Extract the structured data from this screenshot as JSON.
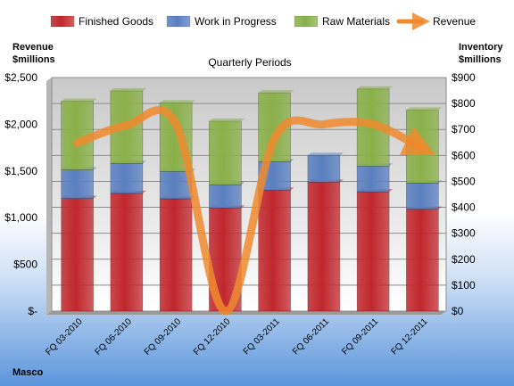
{
  "company": "Masco",
  "chart_data": {
    "type": "bar",
    "subtype": "stacked-bar-with-line",
    "title": "Quarterly Periods",
    "categories": [
      "FQ 03-2010",
      "FQ 06-2010",
      "FQ 09-2010",
      "FQ 12-2010",
      "FQ 03-2011",
      "FQ 06-2011",
      "FQ 09-2011",
      "FQ 12-2011"
    ],
    "series": [
      {
        "name": "Finished Goods",
        "axis": "right",
        "color": "#c0272d",
        "values": [
          434,
          454,
          433,
          397,
          466,
          497,
          460,
          393
        ]
      },
      {
        "name": "Work in Progress",
        "axis": "right",
        "color": "#5a7fc0",
        "values": [
          110,
          115,
          105,
          90,
          110,
          103,
          99,
          100
        ]
      },
      {
        "name": "Raw Materials",
        "axis": "right",
        "color": "#8ab04a",
        "values": [
          265,
          280,
          265,
          245,
          265,
          0,
          297,
          282
        ]
      },
      {
        "name": "Revenue",
        "axis": "left",
        "type": "line",
        "color": "#f08a2e",
        "values": [
          1800,
          1990,
          2000,
          0,
          1850,
          2000,
          2000,
          1740
        ]
      }
    ],
    "y_left": {
      "label": "Revenue\n$millions",
      "range": [
        0,
        2500
      ],
      "ticks": [
        "$-",
        "$500",
        "$1,000",
        "$1,500",
        "$2,000",
        "$2,500"
      ]
    },
    "y_right": {
      "label": "Inventory\n$millions",
      "range": [
        0,
        900
      ],
      "ticks": [
        "$0",
        "$100",
        "$200",
        "$300",
        "$400",
        "$500",
        "$600",
        "$700",
        "$800",
        "$900"
      ]
    },
    "grid": true,
    "legend_position": "top"
  }
}
